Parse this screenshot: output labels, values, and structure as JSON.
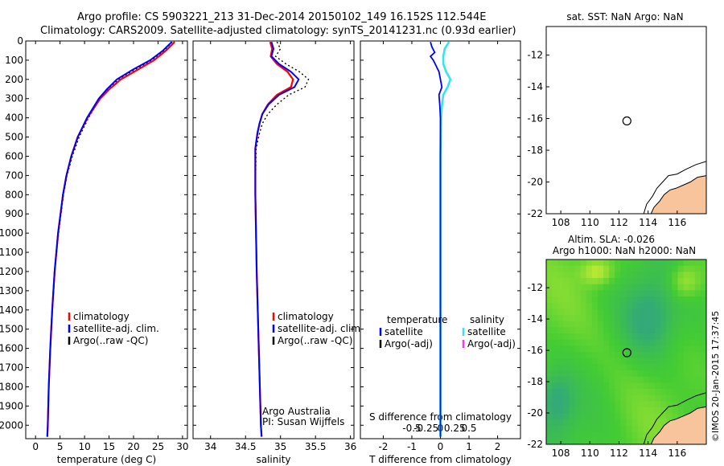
{
  "header": {
    "line1": "Argo profile: CS 5903221_213 31-Dec-2014 20150102_149 16.152S 112.544E",
    "line2": "Climatology: CARS2009. Satellite-adjusted climatology: synTS_20141231.nc (0.93d earlier)"
  },
  "colors": {
    "climatology": "#ff0000",
    "satellite": "#0000ff",
    "argo": "#000000",
    "sal_satellite": "#33e6ee",
    "sal_argo": "#ff33ff",
    "land": "#f7c49b",
    "sla_green": "#44cc33",
    "sla_cyan": "#33aa77",
    "sla_yellow": "#ccee33"
  },
  "chart_data": [
    {
      "id": "temperature",
      "type": "line",
      "xlabel": "temperature (deg C)",
      "xlim": [
        -2,
        31
      ],
      "ylim": [
        2070,
        0
      ],
      "xticks": [
        0,
        5,
        10,
        15,
        20,
        25,
        30
      ],
      "yticks": [
        0,
        100,
        200,
        300,
        400,
        500,
        600,
        700,
        800,
        900,
        1000,
        1100,
        1200,
        1300,
        1400,
        1500,
        1600,
        1700,
        1800,
        1900,
        2000
      ],
      "legend": [
        "climatology",
        "satellite-adj. clim.",
        "Argo(..raw -QC)"
      ],
      "series": [
        {
          "name": "climatology",
          "depth": [
            5,
            50,
            100,
            150,
            200,
            250,
            300,
            400,
            500,
            600,
            700,
            800,
            1000,
            1200,
            1400,
            1600,
            1800,
            2000,
            2060
          ],
          "values": [
            28.4,
            26.6,
            24.2,
            20.8,
            17.4,
            15.1,
            13.2,
            10.6,
            8.6,
            7.3,
            6.3,
            5.6,
            4.6,
            3.9,
            3.4,
            3.0,
            2.7,
            2.5,
            2.4
          ]
        },
        {
          "name": "satellite-adj. clim.",
          "depth": [
            5,
            50,
            100,
            150,
            200,
            250,
            300,
            400,
            500,
            600,
            700,
            800,
            1000,
            1200,
            1400,
            1600,
            1800,
            2000,
            2060
          ],
          "values": [
            27.8,
            26.0,
            23.4,
            19.8,
            16.6,
            14.6,
            12.9,
            10.5,
            8.6,
            7.3,
            6.3,
            5.6,
            4.6,
            3.9,
            3.4,
            3.0,
            2.7,
            2.5,
            2.4
          ]
        },
        {
          "name": "Argo(..raw -QC)",
          "depth": [
            5,
            50,
            100,
            150,
            200,
            250,
            300,
            400,
            500,
            600,
            700,
            800,
            1000,
            1200,
            1400,
            1600,
            1800,
            2000,
            2060
          ],
          "values": [
            27.9,
            26.2,
            23.8,
            20.2,
            16.9,
            14.8,
            13.1,
            10.8,
            8.9,
            7.5,
            6.4,
            5.7,
            4.7,
            3.9,
            3.4,
            3.0,
            2.7,
            2.5,
            2.4
          ]
        }
      ]
    },
    {
      "id": "salinity",
      "type": "line",
      "xlabel": "salinity",
      "xlim": [
        33.75,
        36.05
      ],
      "ylim": [
        2070,
        0
      ],
      "xticks": [
        34,
        34.5,
        35,
        35.5,
        36
      ],
      "legend": [
        "climatology",
        "satellite-adj. clim.",
        "Argo(..raw -QC)"
      ],
      "note_lines": [
        "Argo Australia",
        "PI: Susan Wijffels"
      ],
      "series": [
        {
          "name": "climatology",
          "depth": [
            5,
            40,
            80,
            120,
            160,
            200,
            240,
            280,
            330,
            380,
            430,
            480,
            560,
            800,
            1200,
            1600,
            2000,
            2060
          ],
          "values": [
            34.85,
            34.88,
            34.86,
            34.95,
            35.1,
            35.18,
            35.15,
            34.95,
            34.82,
            34.74,
            34.7,
            34.67,
            34.64,
            34.64,
            34.66,
            34.69,
            34.72,
            34.73
          ]
        },
        {
          "name": "satellite-adj. clim.",
          "depth": [
            5,
            40,
            80,
            120,
            160,
            200,
            240,
            280,
            330,
            380,
            430,
            480,
            560,
            800,
            1200,
            1600,
            2000,
            2060
          ],
          "values": [
            34.87,
            34.9,
            34.87,
            34.98,
            35.15,
            35.26,
            35.2,
            34.98,
            34.83,
            34.74,
            34.7,
            34.67,
            34.64,
            34.64,
            34.66,
            34.69,
            34.72,
            34.73
          ]
        },
        {
          "name": "Argo(..raw -QC)",
          "depth": [
            5,
            40,
            80,
            120,
            160,
            200,
            240,
            280,
            330,
            380,
            430,
            480,
            560,
            800,
            1200,
            1600,
            2000,
            2060
          ],
          "values": [
            34.95,
            35.0,
            34.93,
            35.08,
            35.27,
            35.4,
            35.35,
            35.12,
            34.95,
            34.82,
            34.74,
            34.7,
            34.65,
            34.64,
            34.66,
            34.69,
            34.72,
            34.73
          ]
        }
      ]
    },
    {
      "id": "difference",
      "type": "line",
      "xlabel": "T difference from climatology",
      "xlabel_top": "S difference from climatology",
      "xlim": [
        -2.8,
        2.8
      ],
      "ylim": [
        2070,
        0
      ],
      "xticks": [
        -2,
        -1,
        0,
        1,
        2
      ],
      "xticks_top": [
        "-0.5",
        "-0.25",
        "0",
        "0.25",
        "0.5"
      ],
      "legend_temperature": [
        "temperature",
        "satellite",
        "Argo(-adj)"
      ],
      "legend_salinity": [
        "salinity",
        "satellite",
        "Argo(-adj)"
      ],
      "series": [
        {
          "name": "temperature satellite",
          "depth": [
            5,
            30,
            60,
            80,
            100,
            130,
            160,
            200,
            240,
            280,
            340,
            400,
            600,
            1000,
            1500,
            2060
          ],
          "values": [
            -0.35,
            -0.3,
            -0.2,
            -0.35,
            -0.25,
            -0.15,
            -0.05,
            0.0,
            0.05,
            -0.05,
            -0.02,
            0.0,
            0.0,
            0.0,
            0.0,
            0.0
          ]
        },
        {
          "name": "salinity satellite",
          "depth": [
            5,
            40,
            80,
            120,
            160,
            200,
            240,
            280,
            340,
            400,
            600,
            1000,
            1500,
            2060
          ],
          "values": [
            0.3,
            0.15,
            0.1,
            0.1,
            0.2,
            0.35,
            0.25,
            0.1,
            0.05,
            0.02,
            0.0,
            0.0,
            0.0,
            0.0
          ]
        }
      ]
    },
    {
      "id": "sst_map",
      "type": "scatter",
      "title": "sat. SST: NaN Argo: NaN",
      "xlim": [
        107,
        118
      ],
      "ylim": [
        -22,
        -10.2
      ],
      "xticks": [
        108,
        110,
        112,
        114,
        116
      ],
      "yticks": [
        -12,
        -14,
        -16,
        -18,
        -20,
        -22
      ],
      "marker": {
        "lon": 112.544,
        "lat": -16.152
      }
    },
    {
      "id": "sla_map",
      "type": "heatmap",
      "title_line1": "Altim. SLA: -0.026",
      "title_line2": "Argo h1000: NaN h2000: NaN",
      "xlim": [
        107,
        118
      ],
      "ylim": [
        -22,
        -10.2
      ],
      "xticks": [
        108,
        110,
        112,
        114,
        116
      ],
      "yticks": [
        -12,
        -14,
        -16,
        -18,
        -20,
        -22
      ],
      "marker": {
        "lon": 112.544,
        "lat": -16.152
      }
    }
  ],
  "watermark": "©IMOS 20-Jan-2015 17:37:45"
}
